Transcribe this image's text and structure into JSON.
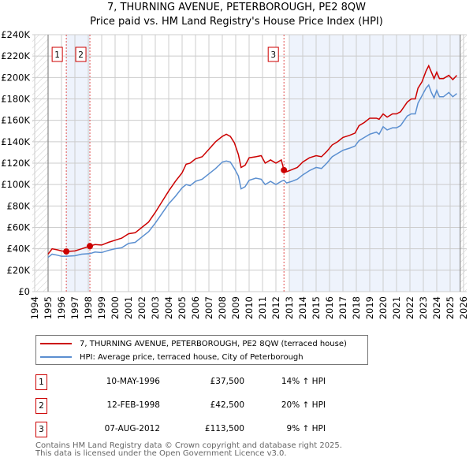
{
  "chart_data": {
    "type": "line",
    "title": "7, THURNING AVENUE, PETERBOROUGH, PE2 8QW",
    "subtitle": "Price paid vs. HM Land Registry's House Price Index (HPI)",
    "xlim": [
      1994,
      2026
    ],
    "ylim": [
      0,
      240000
    ],
    "x_ticks": [
      "1994",
      "1995",
      "1996",
      "1997",
      "1998",
      "1999",
      "2000",
      "2001",
      "2002",
      "2003",
      "2004",
      "2005",
      "2006",
      "2007",
      "2008",
      "2009",
      "2010",
      "2011",
      "2012",
      "2013",
      "2014",
      "2015",
      "2016",
      "2017",
      "2018",
      "2019",
      "2020",
      "2021",
      "2022",
      "2023",
      "2024",
      "2025",
      "2026"
    ],
    "y_ticks": [
      "£0",
      "£20K",
      "£40K",
      "£60K",
      "£80K",
      "£100K",
      "£120K",
      "£140K",
      "£160K",
      "£180K",
      "£200K",
      "£220K",
      "£240K"
    ],
    "grid": true,
    "series": [
      {
        "name": "7, THURNING AVENUE, PETERBOROUGH, PE2 8QW (terraced house)",
        "color": "#cc0000",
        "x": [
          1995.0,
          1995.3,
          1995.7,
          1996.0,
          1996.36,
          1997,
          1997.5,
          1998.12,
          1998.5,
          1999,
          1999.5,
          2000,
          2000.5,
          2001,
          2001.5,
          2002,
          2002.5,
          2003,
          2003.5,
          2004,
          2004.5,
          2005,
          2005.3,
          2005.6,
          2006,
          2006.5,
          2007,
          2007.5,
          2008,
          2008.3,
          2008.6,
          2008.9,
          2009.2,
          2009.4,
          2009.7,
          2010,
          2010.5,
          2010.9,
          2011.2,
          2011.6,
          2012,
          2012.4,
          2012.6,
          2012.8,
          2013.2,
          2013.6,
          2014,
          2014.5,
          2015,
          2015.4,
          2015.8,
          2016.2,
          2016.6,
          2017,
          2017.5,
          2017.9,
          2018.2,
          2018.6,
          2019,
          2019.5,
          2019.7,
          2020,
          2020.3,
          2020.7,
          2021,
          2021.3,
          2021.8,
          2022.1,
          2022.4,
          2022.6,
          2022.9,
          2023.2,
          2023.4,
          2023.6,
          2023.8,
          2024,
          2024.2,
          2024.5,
          2024.9,
          2025.2,
          2025.5
        ],
        "y": [
          35,
          40,
          39,
          38,
          37.5,
          38,
          40,
          42.5,
          44,
          43.5,
          46,
          48,
          50,
          54,
          55,
          60,
          65,
          74,
          84,
          94,
          103,
          111,
          119,
          120,
          124,
          126,
          133,
          140,
          145,
          147,
          145,
          139,
          128,
          116,
          118,
          125,
          126,
          127,
          120,
          123,
          120,
          123,
          113.5,
          112,
          114,
          116,
          121,
          125,
          127,
          126,
          131,
          137,
          140,
          144,
          146,
          148,
          155,
          158,
          162,
          162,
          161,
          166,
          163,
          166,
          166,
          168,
          177,
          180,
          180,
          190,
          196,
          206,
          211,
          205,
          199,
          205,
          199,
          199,
          202,
          198,
          202
        ]
      },
      {
        "name": "HPI: Average price, terraced house, City of Peterborough",
        "color": "#5b8fd0",
        "x": [
          1995.0,
          1995.3,
          1995.7,
          1996.0,
          1996.36,
          1997,
          1997.5,
          1998.12,
          1998.5,
          1999,
          1999.5,
          2000,
          2000.5,
          2001,
          2001.5,
          2002,
          2002.5,
          2003,
          2003.5,
          2004,
          2004.5,
          2005,
          2005.3,
          2005.6,
          2006,
          2006.5,
          2007,
          2007.5,
          2008,
          2008.3,
          2008.6,
          2008.9,
          2009.2,
          2009.4,
          2009.7,
          2010,
          2010.5,
          2010.9,
          2011.2,
          2011.6,
          2012,
          2012.4,
          2012.6,
          2012.8,
          2013.2,
          2013.6,
          2014,
          2014.5,
          2015,
          2015.4,
          2015.8,
          2016.2,
          2016.6,
          2017,
          2017.5,
          2017.9,
          2018.2,
          2018.6,
          2019,
          2019.5,
          2019.7,
          2020,
          2020.3,
          2020.7,
          2021,
          2021.3,
          2021.8,
          2022.1,
          2022.4,
          2022.6,
          2022.9,
          2023.2,
          2023.4,
          2023.6,
          2023.8,
          2024,
          2024.2,
          2024.5,
          2024.9,
          2025.2,
          2025.5
        ],
        "y": [
          32,
          35,
          34,
          33,
          33,
          33.5,
          35,
          35.5,
          37,
          36.5,
          38.5,
          40,
          41,
          45,
          46,
          51,
          56,
          64,
          73,
          82,
          89,
          97,
          100,
          99,
          103,
          105,
          110,
          115,
          121,
          122,
          121,
          115,
          108,
          96,
          98,
          104,
          106,
          105,
          100,
          103,
          100,
          103,
          104,
          101.5,
          103,
          105,
          109,
          113,
          116,
          115,
          120,
          126,
          129,
          132,
          134,
          136,
          141,
          144,
          147,
          149,
          147,
          154,
          151,
          153,
          153,
          155,
          164,
          166,
          166,
          176,
          183,
          190,
          193,
          186,
          181,
          188,
          182,
          182,
          186,
          182,
          185
        ]
      }
    ],
    "sales": [
      {
        "label": "1",
        "x": 1996.36,
        "y": 37.5,
        "date": "10-MAY-1996",
        "price": "£37,500",
        "hpi": "14% ↑ HPI"
      },
      {
        "label": "2",
        "x": 1998.12,
        "y": 42.5,
        "date": "12-FEB-1998",
        "price": "£42,500",
        "hpi": "20% ↑ HPI"
      },
      {
        "label": "3",
        "x": 2012.6,
        "y": 113.5,
        "date": "07-AUG-2012",
        "price": "£113,500",
        "hpi": "9% ↑ HPI"
      }
    ],
    "data_start": 1995.0,
    "data_end": 2025.75,
    "footer1": "Contains HM Land Registry data © Crown copyright and database right 2025.",
    "footer2": "This data is licensed under the Open Government Licence v3.0."
  }
}
